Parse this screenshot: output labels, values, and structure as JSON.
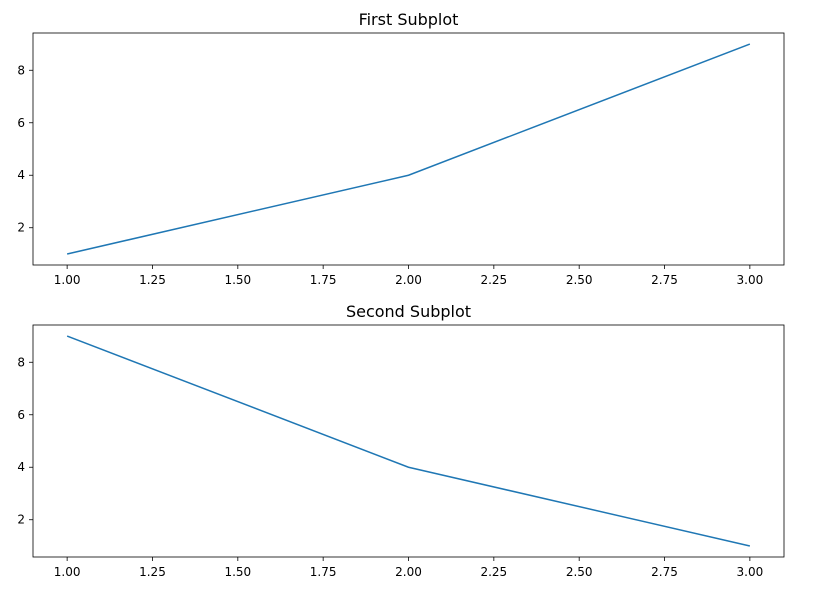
{
  "chart_data": [
    {
      "type": "line",
      "title": "First Subplot",
      "x": [
        1,
        2,
        3
      ],
      "values": [
        1,
        4,
        9
      ],
      "color": "#1f77b4",
      "xlim": [
        0.9,
        3.1
      ],
      "ylim": [
        0.58,
        9.42
      ],
      "xticks": [
        {
          "value": 1,
          "label": "1.00"
        },
        {
          "value": 1.25,
          "label": "1.25"
        },
        {
          "value": 1.5,
          "label": "1.50"
        },
        {
          "value": 1.75,
          "label": "1.75"
        },
        {
          "value": 2,
          "label": "2.00"
        },
        {
          "value": 2.25,
          "label": "2.25"
        },
        {
          "value": 2.5,
          "label": "2.50"
        },
        {
          "value": 2.75,
          "label": "2.75"
        },
        {
          "value": 3,
          "label": "3.00"
        }
      ],
      "yticks": [
        2,
        4,
        6,
        8
      ]
    },
    {
      "type": "line",
      "title": "Second Subplot",
      "x": [
        1,
        2,
        3
      ],
      "values": [
        9,
        4,
        1
      ],
      "color": "#1f77b4",
      "xlim": [
        0.9,
        3.1
      ],
      "ylim": [
        0.58,
        9.42
      ],
      "xticks": [
        {
          "value": 1,
          "label": "1.00"
        },
        {
          "value": 1.25,
          "label": "1.25"
        },
        {
          "value": 1.5,
          "label": "1.50"
        },
        {
          "value": 1.75,
          "label": "1.75"
        },
        {
          "value": 2,
          "label": "2.00"
        },
        {
          "value": 2.25,
          "label": "2.25"
        },
        {
          "value": 2.5,
          "label": "2.50"
        },
        {
          "value": 2.75,
          "label": "2.75"
        },
        {
          "value": 3,
          "label": "3.00"
        }
      ],
      "yticks": [
        2,
        4,
        6,
        8
      ]
    }
  ]
}
